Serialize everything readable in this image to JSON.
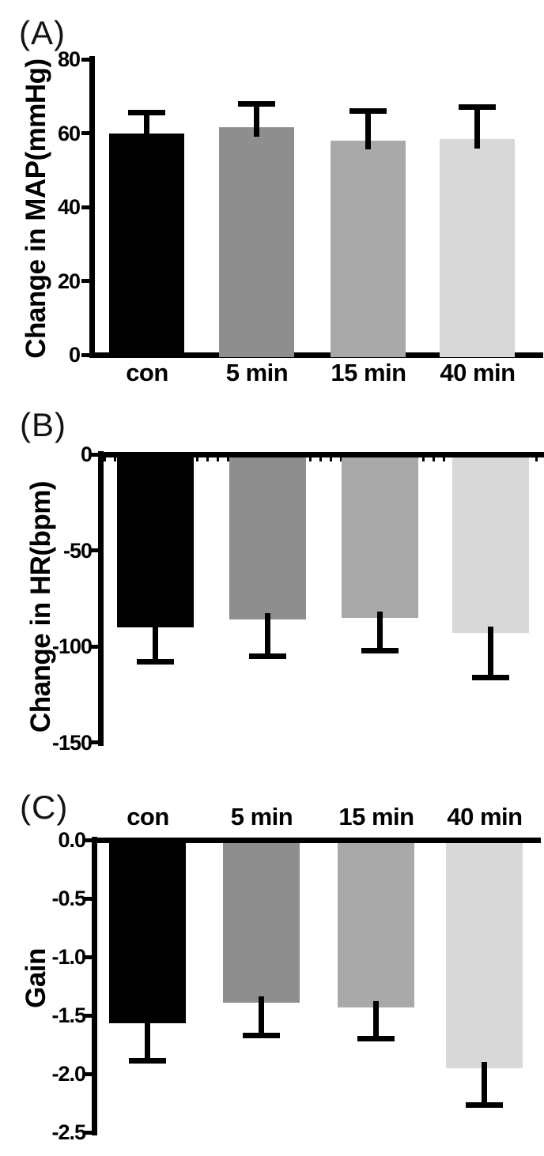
{
  "figure": {
    "background": "#ffffff",
    "panel_count": 3
  },
  "chart_data": [
    {
      "type": "bar",
      "panel_label": "(A)",
      "title": "",
      "xlabel": "",
      "ylabel": "Change in MAP(mmHg)",
      "categories": [
        "con",
        "5 min",
        "15 min",
        "40 min"
      ],
      "values": [
        60,
        61.5,
        58,
        58.5
      ],
      "errors": [
        5.5,
        6.5,
        8,
        8.5
      ],
      "error_direction": "up",
      "ylim": [
        0,
        80
      ],
      "yticks": [
        80,
        60,
        40,
        20,
        0
      ],
      "ytick_labels": [
        "80",
        "60",
        "40",
        "20",
        "0"
      ],
      "bar_colors": [
        "#000000",
        "#8e8e8e",
        "#a9a9a9",
        "#d8d8d8"
      ],
      "category_label_position": "bottom",
      "grid": false,
      "legend": false,
      "axis_minor_ticks": false
    },
    {
      "type": "bar",
      "panel_label": "(B)",
      "title": "",
      "xlabel": "",
      "ylabel": "Change in HR(bpm)",
      "categories": [
        "con",
        "5 min",
        "15 min",
        "40 min"
      ],
      "values": [
        -90,
        -86,
        -85,
        -93
      ],
      "errors": [
        18,
        19,
        17,
        23
      ],
      "error_direction": "down",
      "ylim": [
        0,
        -150
      ],
      "yticks": [
        0,
        -50,
        -100,
        -150
      ],
      "ytick_labels": [
        "0",
        "-50",
        "-100",
        "-150"
      ],
      "bar_colors": [
        "#000000",
        "#8e8e8e",
        "#a9a9a9",
        "#d8d8d8"
      ],
      "category_label_position": "none",
      "grid": false,
      "legend": false,
      "axis_minor_ticks": true
    },
    {
      "type": "bar",
      "panel_label": "(C)",
      "title": "",
      "xlabel": "",
      "ylabel": "Gain",
      "categories": [
        "con",
        "5 min",
        "15 min",
        "40 min"
      ],
      "values": [
        -1.57,
        -1.39,
        -1.43,
        -1.95
      ],
      "errors": [
        0.32,
        0.28,
        0.27,
        0.32
      ],
      "error_direction": "down",
      "ylim": [
        0,
        -2.5
      ],
      "yticks": [
        0,
        -0.5,
        -1,
        -1.5,
        -2,
        -2.5
      ],
      "ytick_labels": [
        "0.0",
        "-0.5",
        "-1.0",
        "-1.5",
        "-2.0",
        "-2.5"
      ],
      "bar_colors": [
        "#000000",
        "#8e8e8e",
        "#a9a9a9",
        "#d8d8d8"
      ],
      "category_label_position": "top",
      "grid": false,
      "legend": false,
      "axis_minor_ticks": false
    }
  ]
}
